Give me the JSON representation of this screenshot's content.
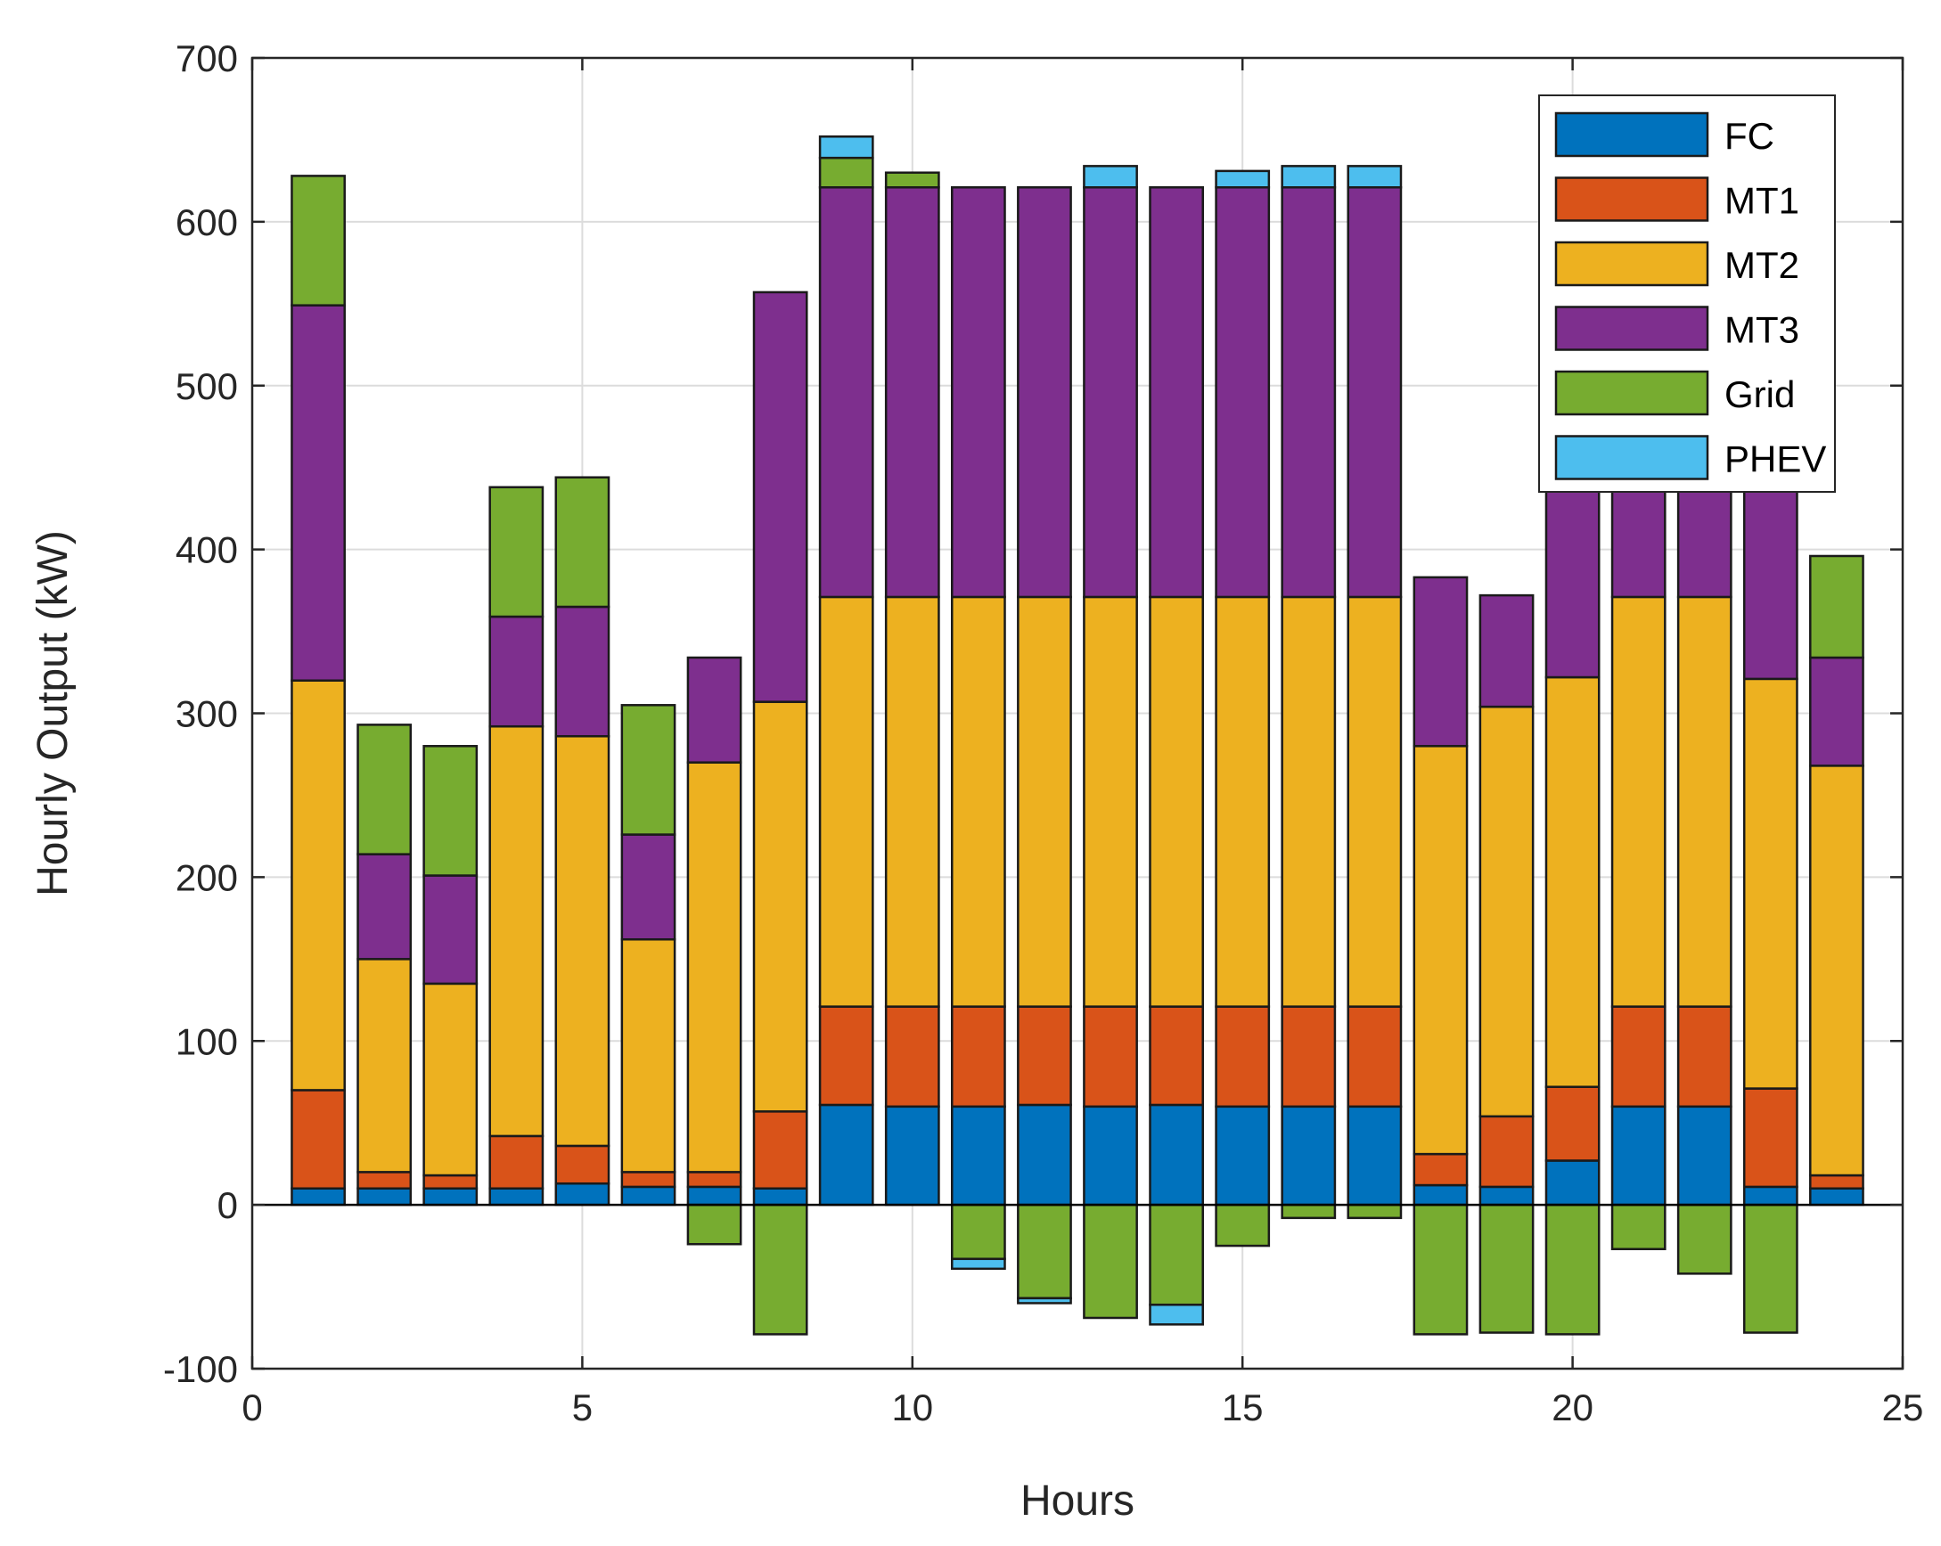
{
  "chart_data": {
    "type": "bar",
    "stacked": true,
    "xlabel": "Hours",
    "ylabel": "Hourly Output (kW)",
    "xlim": [
      0,
      25
    ],
    "ylim": [
      -100,
      700
    ],
    "xticks": [
      0,
      5,
      10,
      15,
      20,
      25
    ],
    "yticks": [
      -100,
      0,
      100,
      200,
      300,
      400,
      500,
      600,
      700
    ],
    "grid": true,
    "legend_position": "top-right",
    "categories": [
      1,
      2,
      3,
      4,
      5,
      6,
      7,
      8,
      9,
      10,
      11,
      12,
      13,
      14,
      15,
      16,
      17,
      18,
      19,
      20,
      21,
      22,
      23,
      24
    ],
    "series": [
      {
        "name": "FC",
        "color": "#0072BD",
        "values": [
          10,
          10,
          10,
          10,
          13,
          11,
          11,
          10,
          61,
          60,
          60,
          61,
          60,
          61,
          60,
          60,
          60,
          12,
          11,
          27,
          60,
          60,
          11,
          10
        ]
      },
      {
        "name": "MT1",
        "color": "#D95319",
        "values": [
          60,
          10,
          8,
          32,
          23,
          9,
          9,
          47,
          60,
          61,
          61,
          60,
          61,
          60,
          61,
          61,
          61,
          19,
          43,
          45,
          61,
          61,
          60,
          8
        ]
      },
      {
        "name": "MT2",
        "color": "#EDB120",
        "values": [
          250,
          130,
          117,
          250,
          250,
          142,
          250,
          250,
          250,
          250,
          250,
          250,
          250,
          250,
          250,
          250,
          250,
          249,
          250,
          250,
          250,
          250,
          250,
          250
        ]
      },
      {
        "name": "MT3",
        "color": "#7E2F8E",
        "values": [
          229,
          64,
          66,
          67,
          79,
          64,
          64,
          250,
          250,
          250,
          250,
          250,
          250,
          250,
          250,
          250,
          250,
          103,
          68,
          212,
          251,
          250,
          250,
          66
        ]
      },
      {
        "name": "Grid",
        "color": "#77AC30",
        "values": [
          79,
          79,
          79,
          79,
          79,
          79,
          -24,
          -79,
          18,
          9,
          -33,
          -57,
          -69,
          -61,
          -25,
          -8,
          -8,
          -79,
          -78,
          -79,
          -27,
          -42,
          -78,
          62
        ]
      },
      {
        "name": "PHEV",
        "color": "#4DBEEE",
        "values": [
          0,
          0,
          0,
          0,
          0,
          0,
          0,
          0,
          13,
          0,
          -6,
          -3,
          13,
          -12,
          10,
          13,
          13,
          0,
          0,
          0,
          0,
          0,
          0,
          0
        ]
      }
    ]
  }
}
